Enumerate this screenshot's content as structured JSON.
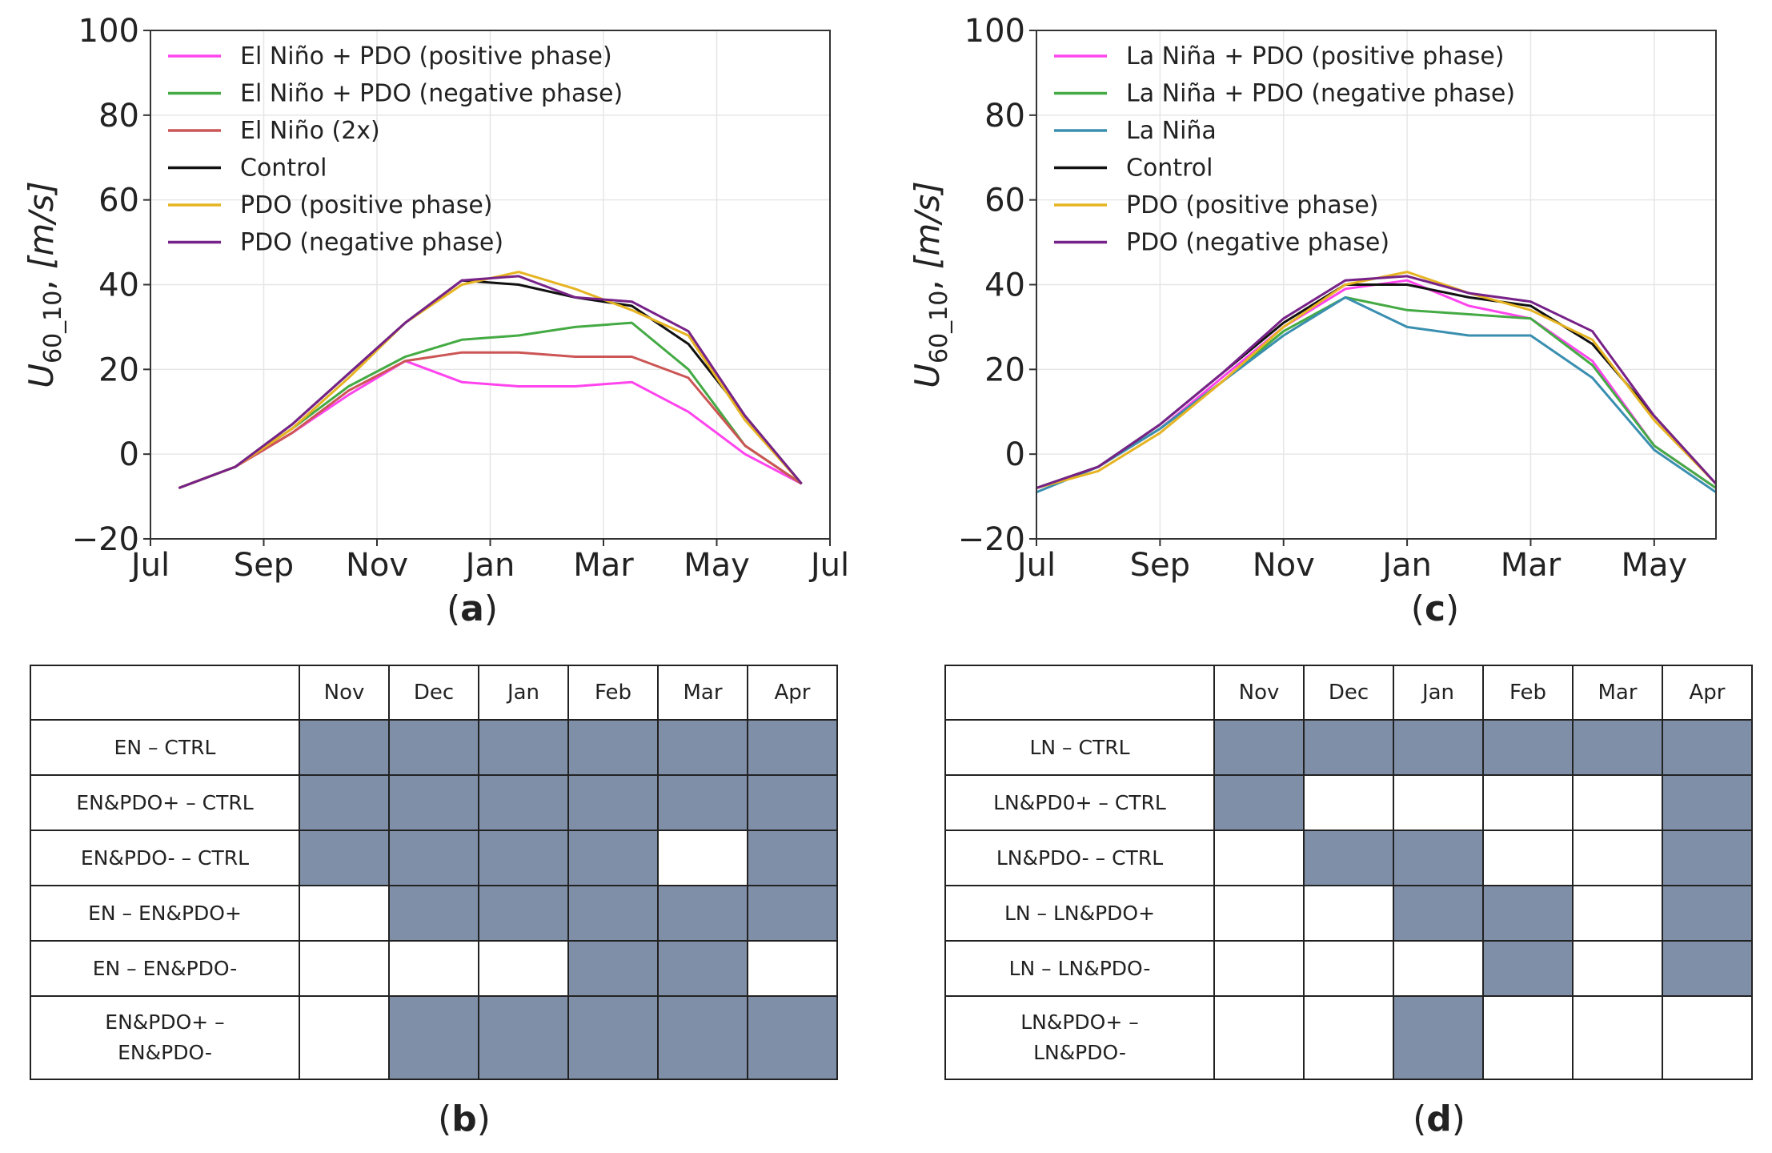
{
  "chart_data": [
    {
      "id": "a",
      "type": "line",
      "panel_label": "a",
      "ylabel": "U60_10, [m/s]",
      "ylim": [
        -20,
        100
      ],
      "yticks": [
        -20,
        0,
        20,
        40,
        60,
        80,
        100
      ],
      "xlim": [
        0,
        12
      ],
      "xticks": [
        {
          "pos": 0,
          "label": "Jul"
        },
        {
          "pos": 2,
          "label": "Sep"
        },
        {
          "pos": 4,
          "label": "Nov"
        },
        {
          "pos": 6,
          "label": "Jan"
        },
        {
          "pos": 8,
          "label": "Mar"
        },
        {
          "pos": 10,
          "label": "May"
        },
        {
          "pos": 12,
          "label": "Jul"
        }
      ],
      "grid": true,
      "legend_position": "top-left",
      "x": [
        0.5,
        1.5,
        2.5,
        3.5,
        4.5,
        5.5,
        6.5,
        7.5,
        8.5,
        9.5,
        10.5,
        11.5
      ],
      "series": [
        {
          "name": "El Niño + PDO (positive phase)",
          "color": "#ff44ee",
          "values": [
            -8,
            -3,
            5,
            14,
            22,
            17,
            16,
            16,
            17,
            10,
            0,
            -7
          ]
        },
        {
          "name": "El Niño + PDO (negative phase)",
          "color": "#44aa44",
          "values": [
            -8,
            -3,
            6,
            16,
            23,
            27,
            28,
            30,
            31,
            20,
            2,
            -7
          ]
        },
        {
          "name": "El Niño (2x)",
          "color": "#cc5555",
          "values": [
            -8,
            -3,
            5,
            15,
            22,
            24,
            24,
            23,
            23,
            18,
            2,
            -7
          ]
        },
        {
          "name": "Control",
          "color": "#111111",
          "values": [
            -8,
            -3,
            7,
            19,
            31,
            41,
            40,
            37,
            35,
            26,
            9,
            -7
          ]
        },
        {
          "name": "PDO (positive phase)",
          "color": "#e6b422",
          "values": [
            -8,
            -3,
            6,
            18,
            31,
            40,
            43,
            39,
            34,
            28,
            8,
            -7
          ]
        },
        {
          "name": "PDO (negative phase)",
          "color": "#772288",
          "values": [
            -8,
            -3,
            7,
            19,
            31,
            41,
            42,
            37,
            36,
            29,
            9,
            -7
          ]
        }
      ]
    },
    {
      "id": "c",
      "type": "line",
      "panel_label": "c",
      "ylabel": "U60_10, [m/s]",
      "ylim": [
        -20,
        100
      ],
      "yticks": [
        -20,
        0,
        20,
        40,
        60,
        80,
        100
      ],
      "xlim": [
        0,
        11
      ],
      "xticks": [
        {
          "pos": 0,
          "label": "Jul"
        },
        {
          "pos": 2,
          "label": "Sep"
        },
        {
          "pos": 4,
          "label": "Nov"
        },
        {
          "pos": 6,
          "label": "Jan"
        },
        {
          "pos": 8,
          "label": "Mar"
        },
        {
          "pos": 10,
          "label": "May"
        }
      ],
      "grid": true,
      "legend_position": "top-left",
      "x": [
        0,
        1,
        2,
        3,
        4,
        5,
        6,
        7,
        8,
        9,
        10,
        11
      ],
      "series": [
        {
          "name": "La Niña + PDO (positive phase)",
          "color": "#ff44ee",
          "values": [
            -8,
            -3,
            6,
            18,
            30,
            39,
            41,
            35,
            32,
            22,
            2,
            -8
          ]
        },
        {
          "name": "La Niña + PDO (negative phase)",
          "color": "#44aa44",
          "values": [
            -8,
            -3,
            6,
            17,
            29,
            37,
            34,
            33,
            32,
            21,
            2,
            -8
          ]
        },
        {
          "name": "La Niña",
          "color": "#3a8fb0",
          "values": [
            -9,
            -3,
            6,
            17,
            28,
            37,
            30,
            28,
            28,
            18,
            1,
            -9
          ]
        },
        {
          "name": "Control",
          "color": "#111111",
          "values": [
            -8,
            -3,
            7,
            19,
            31,
            40,
            40,
            37,
            35,
            26,
            9,
            -7
          ]
        },
        {
          "name": "PDO (positive phase)",
          "color": "#e6b422",
          "values": [
            -8,
            -4,
            5,
            17,
            30,
            40,
            43,
            38,
            34,
            27,
            8,
            -7
          ]
        },
        {
          "name": "PDO (negative phase)",
          "color": "#772288",
          "values": [
            -8,
            -3,
            7,
            19,
            32,
            41,
            42,
            38,
            36,
            29,
            9,
            -7
          ]
        }
      ]
    },
    {
      "id": "b",
      "type": "table",
      "panel_label": "b",
      "columns": [
        "Nov",
        "Dec",
        "Jan",
        "Feb",
        "Mar",
        "Apr"
      ],
      "rows": [
        {
          "label": "EN – CTRL",
          "flags": [
            1,
            1,
            1,
            1,
            1,
            1
          ]
        },
        {
          "label": "EN&PDO+ – CTRL",
          "flags": [
            1,
            1,
            1,
            1,
            1,
            1
          ]
        },
        {
          "label": "EN&PDO- – CTRL",
          "flags": [
            1,
            1,
            1,
            1,
            0,
            1
          ]
        },
        {
          "label": "EN – EN&PDO+",
          "flags": [
            0,
            1,
            1,
            1,
            1,
            1
          ]
        },
        {
          "label": "EN – EN&PDO-",
          "flags": [
            0,
            0,
            0,
            1,
            1,
            0
          ]
        },
        {
          "label": "EN&PDO+ –",
          "label2": "EN&PDO-",
          "flags": [
            0,
            1,
            1,
            1,
            1,
            1
          ]
        }
      ]
    },
    {
      "id": "d",
      "type": "table",
      "panel_label": "d",
      "columns": [
        "Nov",
        "Dec",
        "Jan",
        "Feb",
        "Mar",
        "Apr"
      ],
      "rows": [
        {
          "label": "LN – CTRL",
          "flags": [
            1,
            1,
            1,
            1,
            1,
            1
          ]
        },
        {
          "label": "LN&PD0+ – CTRL",
          "flags": [
            1,
            0,
            0,
            0,
            0,
            1
          ]
        },
        {
          "label": "LN&PDO- – CTRL",
          "flags": [
            0,
            1,
            1,
            0,
            0,
            1
          ]
        },
        {
          "label": "LN – LN&PDO+",
          "flags": [
            0,
            0,
            1,
            1,
            0,
            1
          ]
        },
        {
          "label": "LN – LN&PDO-",
          "flags": [
            0,
            0,
            0,
            1,
            0,
            1
          ]
        },
        {
          "label": "LN&PDO+ –",
          "label2": "LN&PDO-",
          "flags": [
            0,
            0,
            1,
            0,
            0,
            0
          ]
        }
      ]
    }
  ]
}
